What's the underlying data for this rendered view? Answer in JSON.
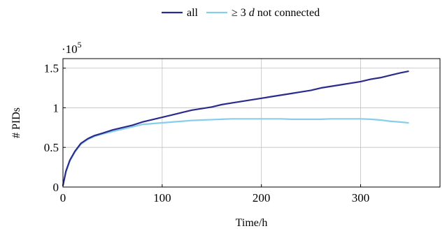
{
  "chart_data": {
    "type": "line",
    "xlabel": "Time/h",
    "ylabel": "# PIDs",
    "y_scale_label": {
      "base": "·10",
      "exponent": "5"
    },
    "xlim": [
      0,
      380
    ],
    "ylim": [
      0,
      1.62
    ],
    "x_ticks": [
      0,
      100,
      200,
      300
    ],
    "x_tick_labels": [
      "0",
      "100",
      "200",
      "300"
    ],
    "y_ticks": [
      0,
      0.5,
      1,
      1.5
    ],
    "y_tick_labels": [
      "0",
      "0.5",
      "1",
      "1.5"
    ],
    "grid": true,
    "legend_position": "top-center",
    "legend": [
      {
        "label": "all",
        "math": false
      },
      {
        "label": "≥ 3",
        "italic_suffix": "d",
        "suffix": " not connected",
        "math": true
      }
    ],
    "series": [
      {
        "name": "all",
        "color": "#2b2b8c",
        "x": [
          0,
          3,
          7,
          12,
          18,
          25,
          32,
          40,
          50,
          60,
          70,
          80,
          90,
          100,
          110,
          120,
          130,
          140,
          150,
          160,
          170,
          180,
          190,
          200,
          210,
          220,
          230,
          240,
          250,
          260,
          270,
          280,
          290,
          300,
          310,
          320,
          330,
          340,
          348
        ],
        "y": [
          0.02,
          0.2,
          0.34,
          0.45,
          0.55,
          0.61,
          0.65,
          0.68,
          0.72,
          0.75,
          0.78,
          0.82,
          0.85,
          0.88,
          0.91,
          0.94,
          0.97,
          0.99,
          1.01,
          1.04,
          1.06,
          1.08,
          1.1,
          1.12,
          1.14,
          1.16,
          1.18,
          1.2,
          1.22,
          1.25,
          1.27,
          1.29,
          1.31,
          1.33,
          1.36,
          1.38,
          1.41,
          1.44,
          1.46
        ]
      },
      {
        "name": "≥ 3 d not connected",
        "color": "#87ceeb",
        "x": [
          0,
          3,
          7,
          12,
          18,
          25,
          32,
          40,
          50,
          60,
          70,
          80,
          90,
          100,
          110,
          120,
          130,
          140,
          150,
          160,
          170,
          180,
          190,
          200,
          210,
          220,
          230,
          240,
          250,
          260,
          270,
          280,
          290,
          300,
          310,
          320,
          330,
          340,
          348
        ],
        "y": [
          0.02,
          0.19,
          0.33,
          0.44,
          0.54,
          0.6,
          0.64,
          0.67,
          0.7,
          0.73,
          0.76,
          0.79,
          0.8,
          0.81,
          0.82,
          0.83,
          0.84,
          0.845,
          0.85,
          0.855,
          0.86,
          0.86,
          0.86,
          0.86,
          0.86,
          0.86,
          0.855,
          0.855,
          0.855,
          0.855,
          0.86,
          0.86,
          0.86,
          0.86,
          0.855,
          0.845,
          0.83,
          0.82,
          0.81
        ]
      }
    ]
  }
}
